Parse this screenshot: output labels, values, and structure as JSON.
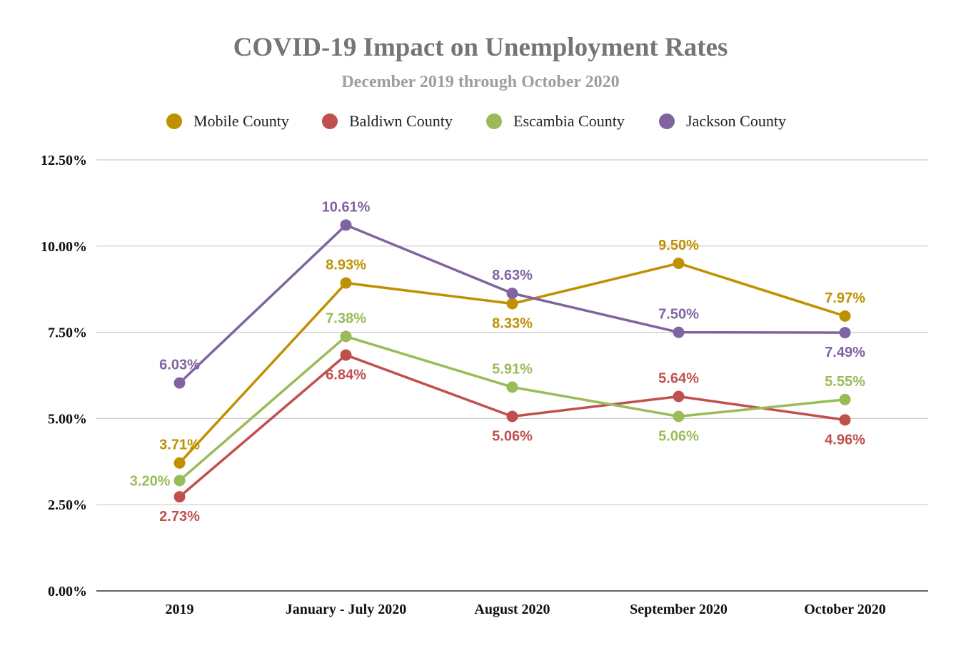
{
  "chart_data": {
    "type": "line",
    "title": "COVID-19 Impact on Unemployment Rates",
    "subtitle": "December 2019 through October 2020",
    "categories": [
      "2019",
      "January - July 2020",
      "August 2020",
      "September 2020",
      "October 2020"
    ],
    "yticks": [
      "0.00%",
      "2.50%",
      "5.00%",
      "7.50%",
      "10.00%",
      "12.50%"
    ],
    "ylim": [
      0,
      12.5
    ],
    "grid": true,
    "legend_position": "top",
    "series": [
      {
        "name": "Mobile County",
        "color": "#bf9000",
        "values": [
          3.71,
          8.93,
          8.33,
          9.5,
          7.97
        ],
        "labels": [
          "3.71%",
          "8.93%",
          "8.33%",
          "9.50%",
          "7.97%"
        ],
        "label_pos": [
          "above",
          "above",
          "below",
          "above",
          "above"
        ]
      },
      {
        "name": "Baldiwn County",
        "color": "#c0504d",
        "values": [
          2.73,
          6.84,
          5.06,
          5.64,
          4.96
        ],
        "labels": [
          "2.73%",
          "6.84%",
          "5.06%",
          "5.64%",
          "4.96%"
        ],
        "label_pos": [
          "below",
          "below",
          "below",
          "above",
          "below"
        ]
      },
      {
        "name": "Escambia County",
        "color": "#9bbb59",
        "values": [
          3.2,
          7.38,
          5.91,
          5.06,
          5.55
        ],
        "labels": [
          "3.20%",
          "7.38%",
          "5.91%",
          "5.06%",
          "5.55%"
        ],
        "label_pos": [
          "left",
          "above",
          "above",
          "below",
          "above"
        ]
      },
      {
        "name": "Jackson County",
        "color": "#8064a2",
        "values": [
          6.03,
          10.61,
          8.63,
          7.5,
          7.49
        ],
        "labels": [
          "6.03%",
          "10.61%",
          "8.63%",
          "7.50%",
          "7.49%"
        ],
        "label_pos": [
          "above",
          "above",
          "above",
          "above",
          "below"
        ]
      }
    ]
  }
}
